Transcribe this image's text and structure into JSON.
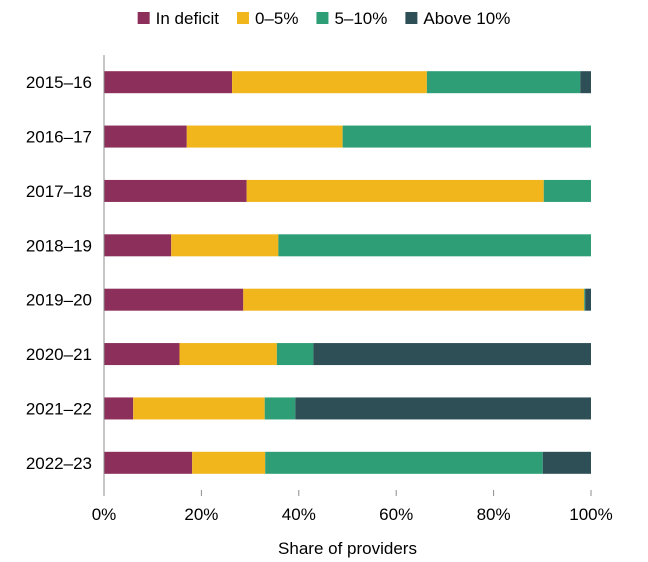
{
  "chart_data": {
    "type": "bar",
    "orientation": "horizontal",
    "stacked": true,
    "title": "",
    "xlabel": "Share of providers",
    "ylabel": "",
    "xlim": [
      0,
      100
    ],
    "x_ticks": [
      "0%",
      "20%",
      "40%",
      "60%",
      "80%",
      "100%"
    ],
    "categories": [
      "2015–16",
      "2016–17",
      "2017–18",
      "2018–19",
      "2019–20",
      "2020–21",
      "2021–22",
      "2022–23"
    ],
    "series": [
      {
        "name": "In deficit",
        "color": "#8c2f5b",
        "values": [
          26.3,
          17.0,
          29.3,
          13.8,
          28.6,
          15.5,
          6.0,
          18.1
        ]
      },
      {
        "name": "0–5%",
        "color": "#f2b61d",
        "values": [
          40.0,
          32.0,
          61.0,
          22.0,
          70.0,
          20.0,
          27.0,
          15.0
        ]
      },
      {
        "name": "5–10%",
        "color": "#2e9e76",
        "values": [
          31.5,
          51.0,
          9.7,
          64.2,
          0.2,
          7.5,
          6.3,
          57.0
        ]
      },
      {
        "name": "Above 10%",
        "color": "#2f4f57",
        "values": [
          2.2,
          0.0,
          0.0,
          0.0,
          1.2,
          57.0,
          60.7,
          9.9
        ]
      }
    ],
    "legend_position": "top",
    "grid": false
  }
}
